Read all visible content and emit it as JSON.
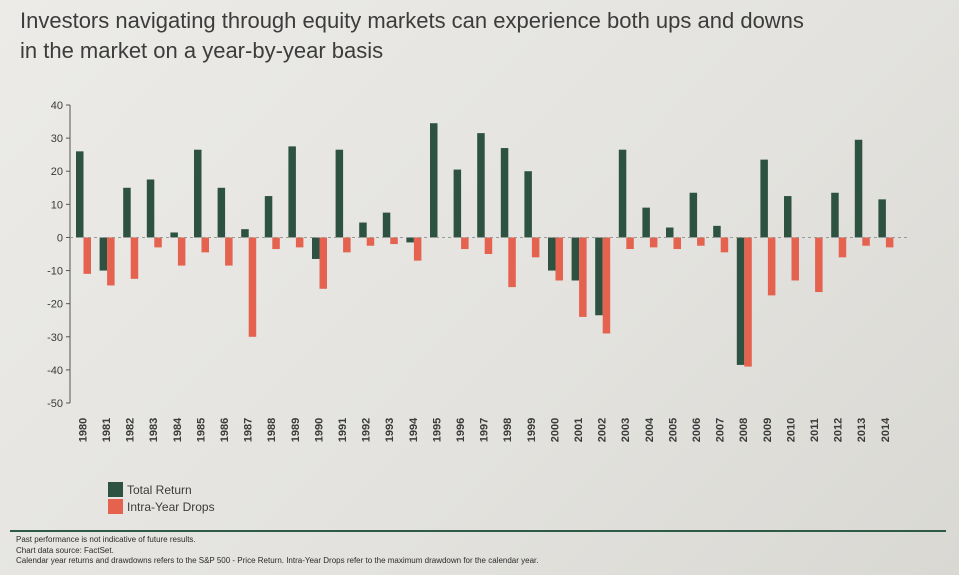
{
  "title": {
    "line1": "Investors navigating through equity markets can experience both ups and downs",
    "line2": "in the market on a year-by-year basis"
  },
  "colors": {
    "total_return": "#2e5242",
    "intra_year_drops": "#e4624e",
    "axis": "#555555"
  },
  "chart_data": {
    "type": "bar",
    "title": "Investors navigating through equity markets can experience both ups and downs in the market on a year-by-year basis",
    "xlabel": "",
    "ylabel": "",
    "ylim": [
      -50,
      40
    ],
    "yticks": [
      40,
      30,
      20,
      10,
      0,
      -10,
      -20,
      -30,
      -40,
      -50
    ],
    "categories": [
      "1980",
      "1981",
      "1982",
      "1983",
      "1984",
      "1985",
      "1986",
      "1987",
      "1988",
      "1989",
      "1990",
      "1991",
      "1992",
      "1993",
      "1994",
      "1995",
      "1996",
      "1997",
      "1998",
      "1999",
      "2000",
      "2001",
      "2002",
      "2003",
      "2004",
      "2005",
      "2006",
      "2007",
      "2008",
      "2009",
      "2010",
      "2011",
      "2012",
      "2013",
      "2014"
    ],
    "series": [
      {
        "name": "Total Return",
        "values": [
          26,
          -10,
          15,
          17.5,
          1.5,
          26.5,
          15,
          2.5,
          12.5,
          27.5,
          -6.5,
          26.5,
          4.5,
          7.5,
          -1.5,
          34.5,
          20.5,
          31.5,
          27,
          20,
          -10,
          -13,
          -23.5,
          26.5,
          9,
          3,
          13.5,
          3.5,
          -38.5,
          23.5,
          12.5,
          0,
          13.5,
          29.5,
          11.5
        ]
      },
      {
        "name": "Intra-Year Drops",
        "values": [
          -11,
          -14.5,
          -12.5,
          -3,
          -8.5,
          -4.5,
          -8.5,
          -30,
          -3.5,
          -3,
          -15.5,
          -4.5,
          -2.5,
          -2,
          -7,
          0,
          -3.5,
          -5,
          -15,
          -6,
          -13,
          -24,
          -29,
          -3.5,
          -3,
          -3.5,
          -2.5,
          -4.5,
          -39,
          -17.5,
          -13,
          -16.5,
          -6,
          -2.5,
          -3
        ]
      }
    ],
    "legend_placement": "bottom-left",
    "grid": false
  },
  "legend": {
    "items": [
      "Total Return",
      "Intra-Year Drops"
    ]
  },
  "footnotes": [
    "Past performance is not indicative of future results.",
    "Chart data source: FactSet.",
    "Calendar year returns and drawdowns refers to the S&P 500 - Price Return. Intra-Year Drops refer to the maximum drawdown for the calendar year."
  ]
}
